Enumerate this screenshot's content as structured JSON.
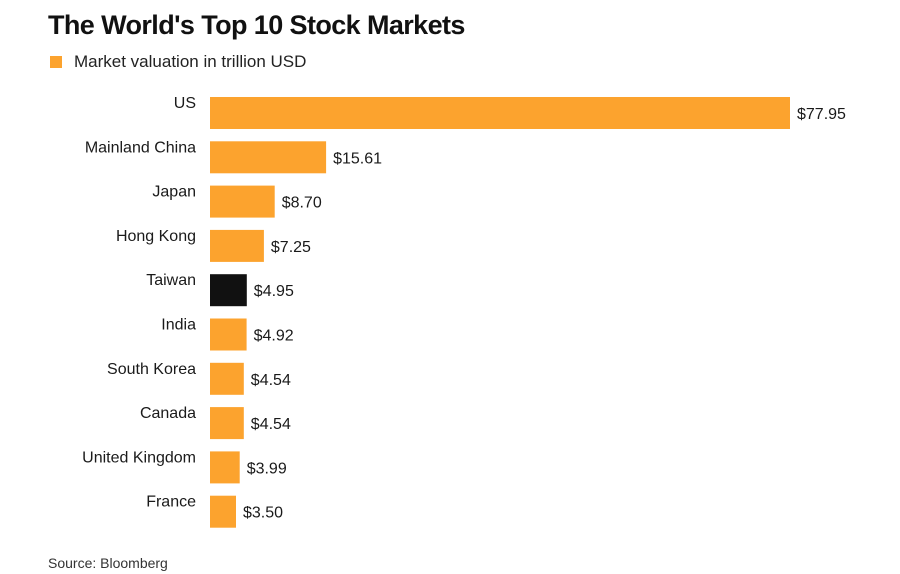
{
  "colors": {
    "bar": "#FCA32E",
    "highlight": "#111111"
  },
  "chart_data": {
    "type": "bar",
    "orientation": "horizontal",
    "title": "The World's Top 10 Stock Markets",
    "legend": {
      "label": "Market valuation in trillion USD",
      "placement": "top-left"
    },
    "categories": [
      "US",
      "Mainland China",
      "Japan",
      "Hong Kong",
      "Taiwan",
      "India",
      "South Korea",
      "Canada",
      "United Kingdom",
      "France"
    ],
    "values": [
      77.95,
      15.61,
      8.7,
      7.25,
      4.95,
      4.92,
      4.54,
      4.54,
      3.99,
      3.5
    ],
    "value_labels": [
      "$77.95",
      "$15.61",
      "$8.70",
      "$7.25",
      "$4.95",
      "$4.92",
      "$4.54",
      "$4.54",
      "$3.99",
      "$3.50"
    ],
    "highlighted_category": "Taiwan",
    "grid": false,
    "source": "Source: Bloomberg"
  }
}
